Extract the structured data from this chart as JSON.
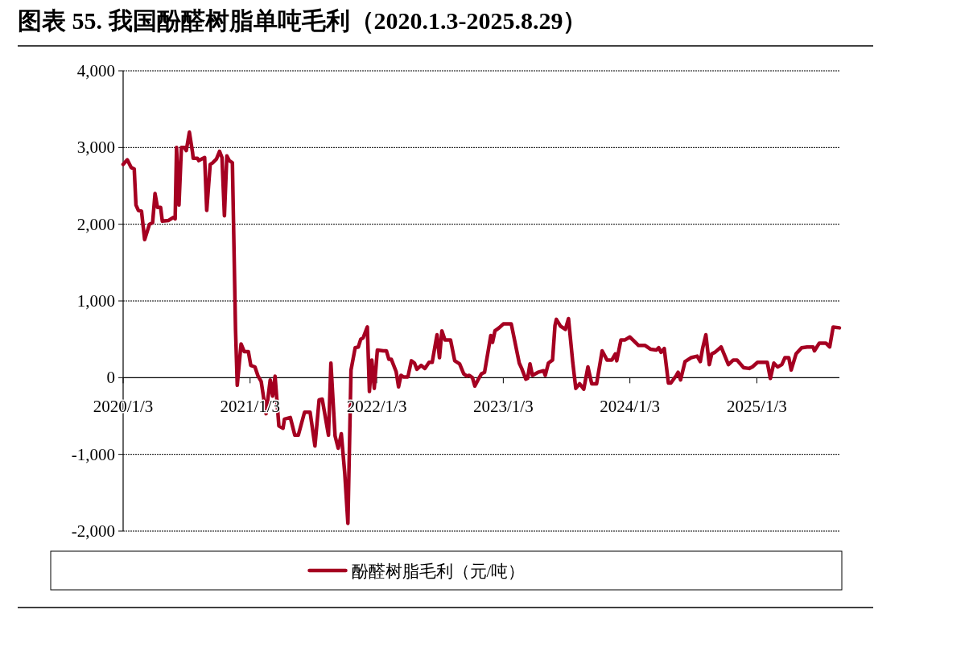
{
  "chart_data": {
    "type": "line",
    "title": "图表 55. 我国酚醛树脂单吨毛利（2020.1.3-2025.8.29）",
    "xlim": [
      "2020-01-03",
      "2025-08-29"
    ],
    "xticks": [
      {
        "value": "2020-01-03",
        "label": "2020/1/3"
      },
      {
        "value": "2021-01-03",
        "label": "2021/1/3"
      },
      {
        "value": "2022-01-03",
        "label": "2022/1/3"
      },
      {
        "value": "2023-01-03",
        "label": "2023/1/3"
      },
      {
        "value": "2024-01-03",
        "label": "2024/1/3"
      },
      {
        "value": "2025-01-03",
        "label": "2025/1/3"
      }
    ],
    "ylim": [
      -2000,
      4000
    ],
    "yticks": [
      {
        "value": -2000,
        "label": "-2,000"
      },
      {
        "value": -1000,
        "label": "-1,000"
      },
      0,
      {
        "value": 1000,
        "label": "1,000"
      },
      {
        "value": 2000,
        "label": "2,000"
      },
      {
        "value": 3000,
        "label": "3,000"
      },
      {
        "value": 4000,
        "label": "4,000"
      }
    ],
    "grid": "y",
    "legend": "bottom",
    "line_style": "solid",
    "marker": "none",
    "x": [
      "2020-01-03",
      "2020-01-15",
      "2020-01-26",
      "2020-02-04",
      "2020-02-09",
      "2020-02-16",
      "2020-02-25",
      "2020-03-05",
      "2020-03-19",
      "2020-03-28",
      "2020-04-04",
      "2020-04-11",
      "2020-04-20",
      "2020-04-25",
      "2020-05-13",
      "2020-05-27",
      "2020-06-01",
      "2020-06-05",
      "2020-06-12",
      "2020-06-19",
      "2020-06-28",
      "2020-07-03",
      "2020-07-12",
      "2020-07-21",
      "2020-07-23",
      "2020-08-04",
      "2020-08-08",
      "2020-08-25",
      "2020-08-31",
      "2020-09-10",
      "2020-09-17",
      "2020-09-28",
      "2020-10-07",
      "2020-10-14",
      "2020-10-21",
      "2020-10-28",
      "2020-11-04",
      "2020-11-13",
      "2020-11-22",
      "2020-11-27",
      "2020-12-08",
      "2020-12-17",
      "2020-12-29",
      "2021-01-05",
      "2021-01-17",
      "2021-01-26",
      "2021-02-04",
      "2021-02-18",
      "2021-03-02",
      "2021-03-09",
      "2021-03-16",
      "2021-03-27",
      "2021-04-08",
      "2021-04-12",
      "2021-04-29",
      "2021-05-12",
      "2021-05-22",
      "2021-06-09",
      "2021-06-25",
      "2021-07-09",
      "2021-07-21",
      "2021-07-30",
      "2021-08-17",
      "2021-08-24",
      "2021-09-05",
      "2021-09-14",
      "2021-09-23",
      "2021-10-03",
      "2021-10-12",
      "2021-10-21",
      "2021-11-02",
      "2021-11-11",
      "2021-11-18",
      "2021-11-25",
      "2021-12-07",
      "2021-12-13",
      "2021-12-20",
      "2021-12-27",
      "2022-01-05",
      "2022-01-22",
      "2022-01-31",
      "2022-02-07",
      "2022-02-14",
      "2022-02-28",
      "2022-03-07",
      "2022-03-14",
      "2022-03-21",
      "2022-04-03",
      "2022-04-13",
      "2022-04-22",
      "2022-04-29",
      "2022-05-11",
      "2022-05-22",
      "2022-06-03",
      "2022-06-12",
      "2022-06-26",
      "2022-07-03",
      "2022-07-10",
      "2022-07-19",
      "2022-08-04",
      "2022-08-16",
      "2022-08-30",
      "2022-09-11",
      "2022-09-20",
      "2022-09-27",
      "2022-10-06",
      "2022-10-13",
      "2022-10-22",
      "2022-11-01",
      "2022-11-10",
      "2022-11-28",
      "2022-12-03",
      "2022-12-10",
      "2022-12-22",
      "2023-01-03",
      "2023-01-26",
      "2023-02-04",
      "2023-02-18",
      "2023-02-25",
      "2023-03-09",
      "2023-03-14",
      "2023-03-21",
      "2023-03-28",
      "2023-04-13",
      "2023-04-29",
      "2023-05-04",
      "2023-05-13",
      "2023-05-25",
      "2023-06-01",
      "2023-06-05",
      "2023-06-17",
      "2023-07-01",
      "2023-07-10",
      "2023-07-22",
      "2023-07-31",
      "2023-08-11",
      "2023-08-23",
      "2023-09-04",
      "2023-09-15",
      "2023-09-29",
      "2023-10-15",
      "2023-10-29",
      "2023-11-12",
      "2023-11-22",
      "2023-11-26",
      "2023-12-08",
      "2023-12-19",
      "2024-01-03",
      "2024-01-12",
      "2024-01-28",
      "2024-02-16",
      "2024-03-03",
      "2024-03-19",
      "2024-03-26",
      "2024-04-02",
      "2024-04-11",
      "2024-04-23",
      "2024-04-30",
      "2024-05-16",
      "2024-05-21",
      "2024-05-28",
      "2024-06-10",
      "2024-06-27",
      "2024-07-15",
      "2024-07-24",
      "2024-07-31",
      "2024-08-09",
      "2024-08-19",
      "2024-08-26",
      "2024-09-04",
      "2024-09-22",
      "2024-10-13",
      "2024-10-27",
      "2024-11-07",
      "2024-11-26",
      "2024-12-12",
      "2024-12-21",
      "2025-01-05",
      "2025-02-02",
      "2025-02-11",
      "2025-02-21",
      "2025-03-04",
      "2025-03-16",
      "2025-03-25",
      "2025-04-05",
      "2025-04-12",
      "2025-04-26",
      "2025-05-12",
      "2025-05-28",
      "2025-06-14",
      "2025-06-18",
      "2025-07-02",
      "2025-07-21",
      "2025-08-01",
      "2025-08-11",
      "2025-08-29"
    ],
    "series": [
      {
        "name": "酚醛树脂毛利（元/吨）",
        "color": "#a50021",
        "values": [
          2780,
          2840,
          2740,
          2720,
          2250,
          2180,
          2170,
          1800,
          2000,
          2020,
          2400,
          2220,
          2220,
          2040,
          2050,
          2090,
          2070,
          3000,
          2250,
          3000,
          3000,
          2960,
          3200,
          2940,
          2860,
          2860,
          2830,
          2870,
          2180,
          2780,
          2800,
          2850,
          2950,
          2870,
          2110,
          2890,
          2830,
          2800,
          630,
          -100,
          440,
          340,
          340,
          160,
          140,
          20,
          -50,
          -470,
          -30,
          -240,
          20,
          -630,
          -660,
          -540,
          -520,
          -750,
          -750,
          -450,
          -450,
          -890,
          -290,
          -280,
          -750,
          190,
          -760,
          -920,
          -730,
          -1250,
          -1900,
          100,
          390,
          400,
          500,
          520,
          660,
          -180,
          230,
          -140,
          360,
          350,
          350,
          240,
          240,
          80,
          -120,
          30,
          10,
          10,
          220,
          190,
          110,
          160,
          120,
          200,
          200,
          560,
          260,
          610,
          490,
          490,
          220,
          180,
          50,
          20,
          30,
          0,
          -110,
          -30,
          50,
          70,
          550,
          460,
          610,
          650,
          700,
          700,
          500,
          190,
          120,
          -20,
          -10,
          180,
          30,
          70,
          90,
          30,
          190,
          230,
          680,
          760,
          670,
          630,
          770,
          210,
          -140,
          -80,
          -150,
          140,
          -80,
          -80,
          350,
          230,
          230,
          310,
          220,
          490,
          490,
          530,
          490,
          420,
          420,
          370,
          360,
          390,
          330,
          380,
          -70,
          -70,
          30,
          70,
          -30,
          210,
          260,
          280,
          210,
          390,
          560,
          170,
          310,
          330,
          400,
          170,
          230,
          230,
          130,
          120,
          140,
          200,
          200,
          -10,
          190,
          140,
          170,
          260,
          260,
          100,
          310,
          390,
          400,
          400,
          350,
          450,
          450,
          400,
          660,
          650
        ]
      }
    ]
  }
}
